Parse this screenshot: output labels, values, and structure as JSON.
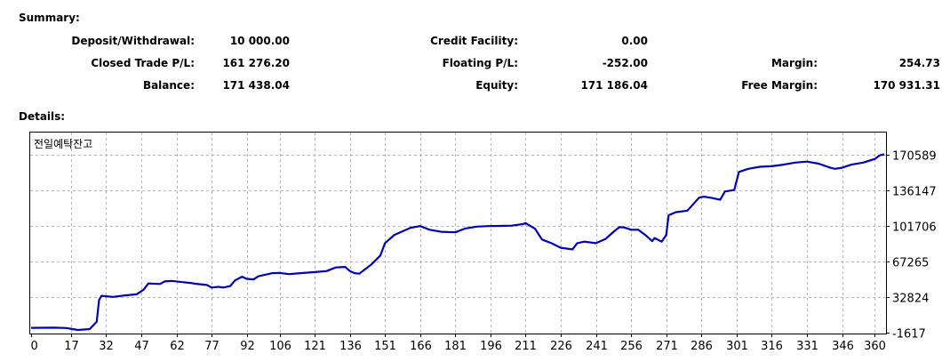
{
  "summary": {
    "heading": "Summary:",
    "deposit_label": "Deposit/Withdrawal:",
    "deposit_value": "10 000.00",
    "credit_label": "Credit Facility:",
    "credit_value": "0.00",
    "closed_label": "Closed Trade P/L:",
    "closed_value": "161 276.20",
    "floating_label": "Floating P/L:",
    "floating_value": "-252.00",
    "margin_label": "Margin:",
    "margin_value": "254.73",
    "balance_label": "Balance:",
    "balance_value": "171 438.04",
    "equity_label": "Equity:",
    "equity_value": "171 186.04",
    "free_margin_label": "Free Margin:",
    "free_margin_value": "170 931.31"
  },
  "details": {
    "heading": "Details:"
  },
  "chart_data": {
    "type": "line",
    "title": "전일예탁잔고",
    "x_ticks": [
      "0",
      "17",
      "32",
      "47",
      "62",
      "77",
      "92",
      "106",
      "121",
      "136",
      "151",
      "166",
      "181",
      "196",
      "211",
      "226",
      "241",
      "256",
      "271",
      "286",
      "301",
      "316",
      "331",
      "346",
      "360"
    ],
    "y_ticks": [
      "170589",
      "136147",
      "101706",
      "67265",
      "32824",
      "-1617"
    ],
    "xlim": [
      0,
      364
    ],
    "ylim": [
      -1617,
      170589
    ],
    "grid": true,
    "line_color": "#0000b4",
    "series": [
      {
        "x": [
          0,
          10,
          15,
          20,
          25,
          28,
          29,
          30,
          35,
          40,
          45,
          48,
          50,
          55,
          57,
          60,
          65,
          68,
          70,
          75,
          77,
          80,
          82,
          85,
          87,
          90,
          92,
          95,
          97,
          100,
          103,
          106,
          110,
          115,
          121,
          126,
          130,
          134,
          136,
          138,
          140,
          145,
          149,
          151,
          155,
          158,
          162,
          166,
          170,
          175,
          181,
          185,
          190,
          195,
          200,
          205,
          210,
          211,
          212,
          215,
          218,
          222,
          226,
          231,
          233,
          236,
          241,
          245,
          249,
          251,
          253,
          256,
          259,
          262,
          265,
          266,
          269,
          271,
          272,
          275,
          280,
          285,
          287,
          290,
          294,
          296,
          300,
          302,
          306,
          311,
          316,
          321,
          326,
          331,
          336,
          341,
          343,
          346,
          350,
          355,
          360,
          362,
          364
        ],
        "y": [
          3000,
          3200,
          2900,
          1000,
          1800,
          9000,
          30000,
          34000,
          33000,
          34500,
          35500,
          40000,
          46000,
          45500,
          48000,
          48500,
          47200,
          46500,
          45700,
          44500,
          42000,
          42700,
          42000,
          43500,
          49000,
          52500,
          50500,
          50000,
          53000,
          54500,
          56000,
          56200,
          55000,
          56000,
          57000,
          58000,
          61500,
          62000,
          58000,
          56000,
          55500,
          64000,
          73000,
          85000,
          93000,
          96000,
          100000,
          101500,
          98000,
          96000,
          95500,
          99000,
          101000,
          101500,
          101700,
          102000,
          103500,
          104500,
          103000,
          99000,
          88500,
          85000,
          80500,
          79000,
          85000,
          86500,
          85000,
          89000,
          97000,
          100500,
          100200,
          98000,
          98000,
          93000,
          87000,
          90000,
          86500,
          93000,
          112000,
          115000,
          116500,
          129000,
          130000,
          129000,
          127000,
          135000,
          136500,
          154000,
          157000,
          159000,
          159500,
          161000,
          163000,
          164000,
          162000,
          158000,
          157000,
          158000,
          161000,
          163000,
          166500,
          170000,
          171000
        ]
      }
    ]
  }
}
